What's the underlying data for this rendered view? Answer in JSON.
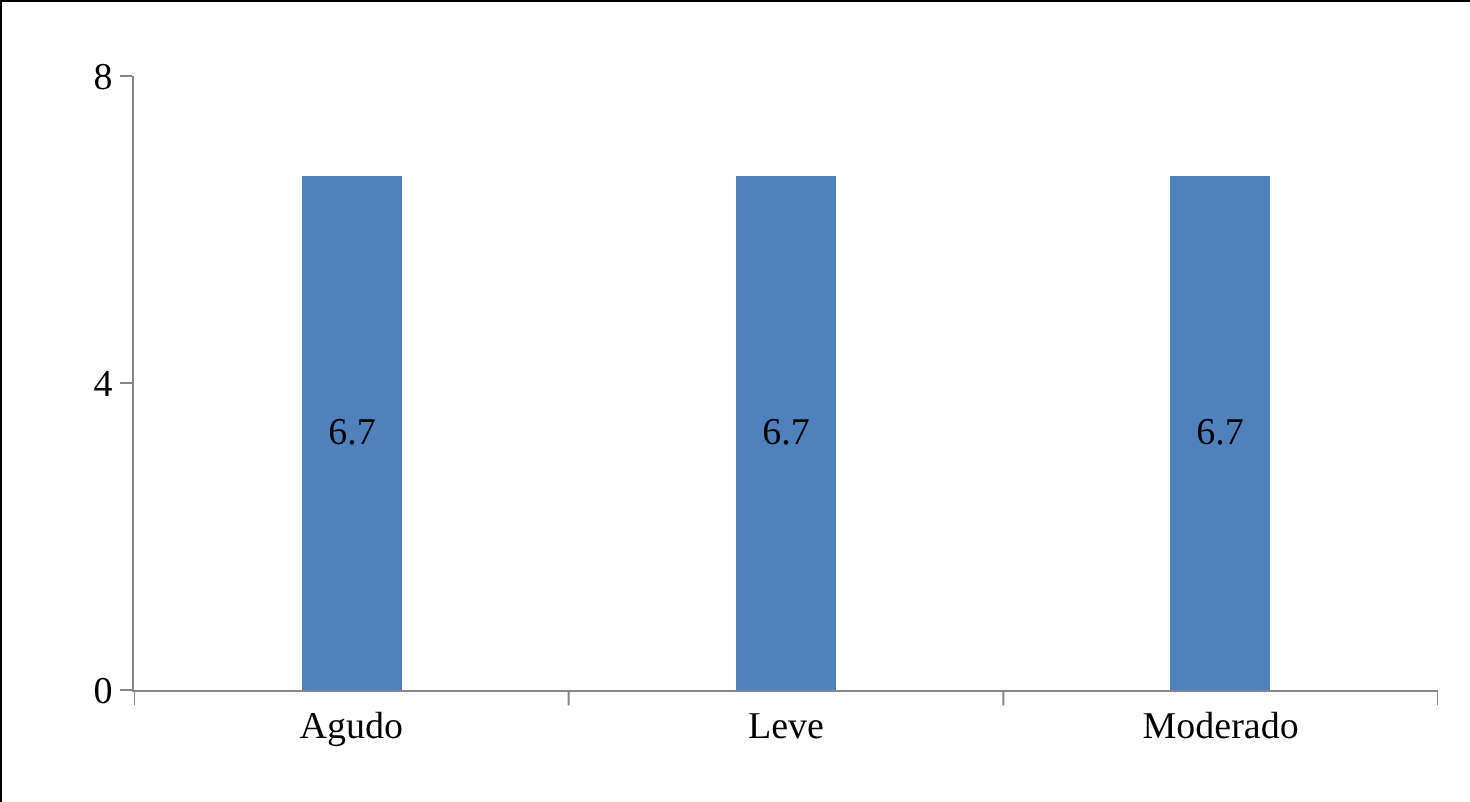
{
  "chart_data": {
    "type": "bar",
    "categories": [
      "Agudo",
      "Leve",
      "Moderado"
    ],
    "values": [
      6.7,
      6.7,
      6.7
    ],
    "color": "#4f81bd",
    "ylim": [
      0,
      8
    ],
    "yticks": [
      0,
      4,
      8
    ],
    "grid": false,
    "legend": false,
    "data_labels": true
  }
}
